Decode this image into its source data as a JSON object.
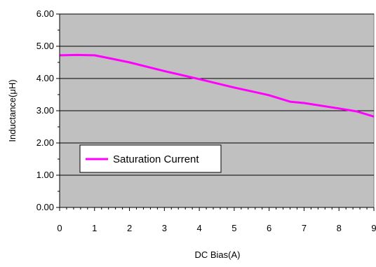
{
  "chart_data": {
    "type": "line",
    "title": "",
    "xlabel": "DC Bias(A)",
    "ylabel": "Inductance(μH)",
    "xlim": [
      0,
      9
    ],
    "ylim": [
      0,
      6
    ],
    "xticks": [
      "0",
      "1",
      "2",
      "3",
      "4",
      "5",
      "6",
      "7",
      "8",
      "9"
    ],
    "yticks": [
      "0.00",
      "1.00",
      "2.00",
      "3.00",
      "4.00",
      "5.00",
      "6.00"
    ],
    "grid": "horizontal",
    "plot_background": "#c0c0c0",
    "legend_placement": "lower-left",
    "series": [
      {
        "name": "Saturation Current",
        "color": "#ff00ff",
        "x": [
          0,
          0.5,
          1.0,
          1.5,
          2.0,
          3.0,
          4.0,
          5.0,
          6.0,
          6.6,
          7.0,
          8.0,
          8.5,
          9.0
        ],
        "y": [
          4.72,
          4.73,
          4.72,
          4.61,
          4.5,
          4.23,
          3.98,
          3.72,
          3.48,
          3.28,
          3.24,
          3.07,
          2.98,
          2.82
        ]
      }
    ]
  }
}
